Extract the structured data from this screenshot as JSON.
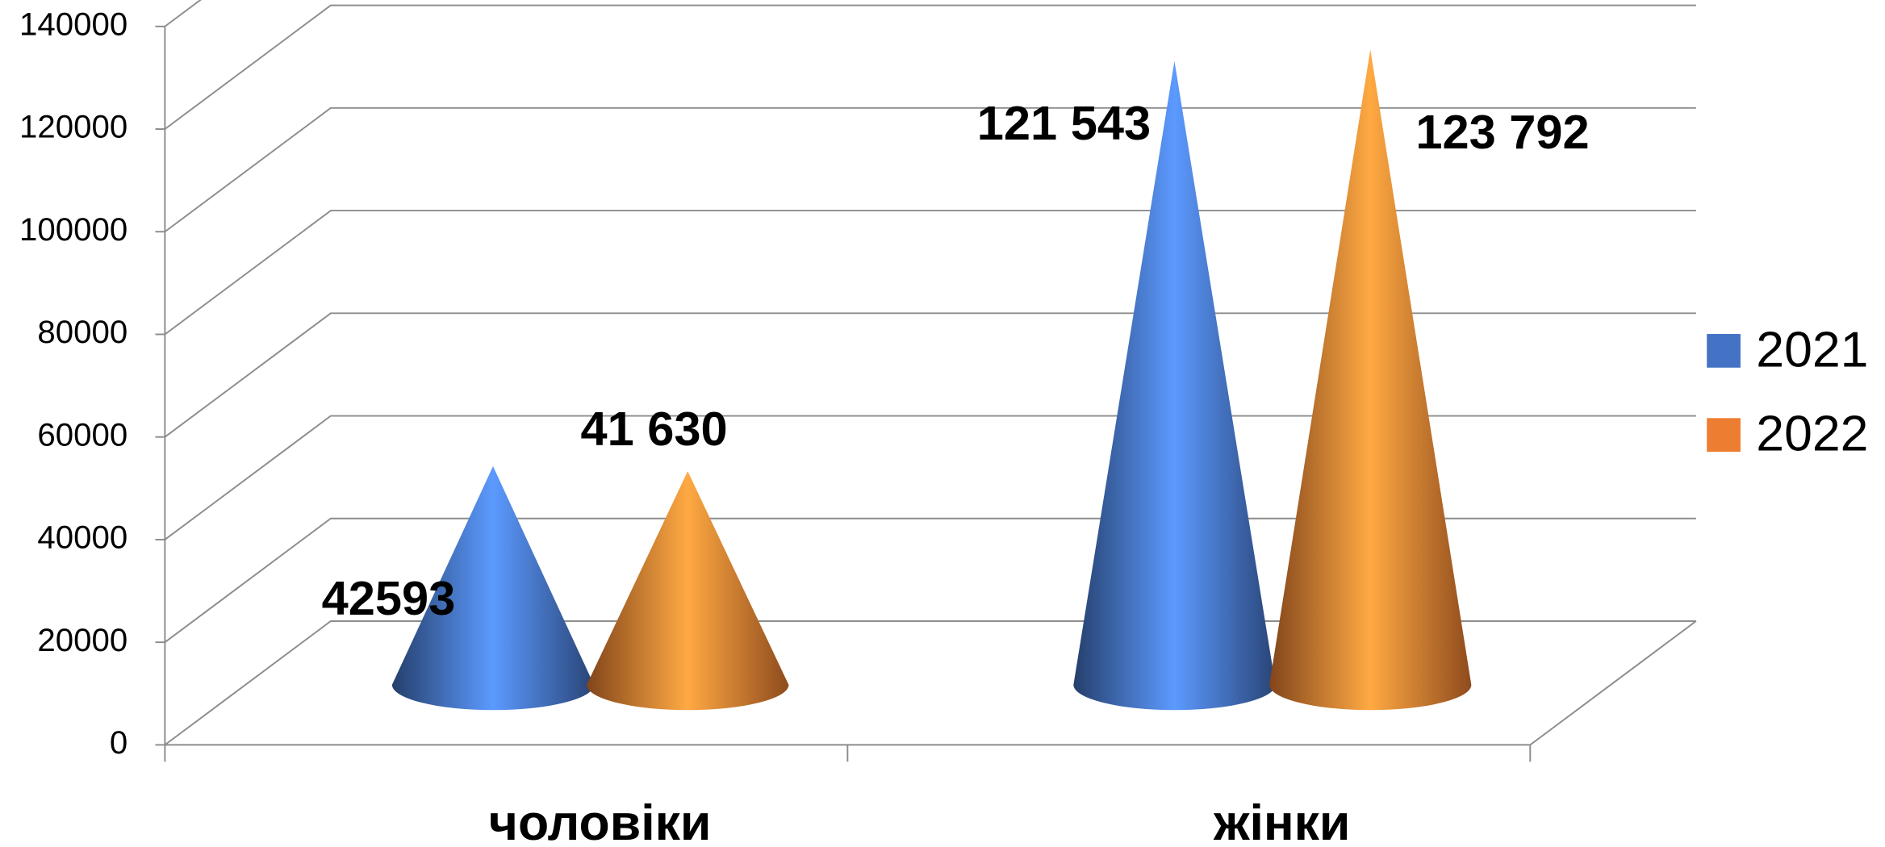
{
  "chart_data": {
    "type": "cone3d",
    "categories": [
      "чоловіки",
      "жінки"
    ],
    "series": [
      {
        "name": "2021",
        "color": "#4472c4",
        "values": [
          42593,
          121543
        ],
        "value_labels": [
          "42593",
          "121 543"
        ]
      },
      {
        "name": "2022",
        "color": "#ed7d31",
        "values": [
          41630,
          123792
        ],
        "value_labels": [
          "41 630",
          "123 792"
        ]
      }
    ],
    "ylim": [
      0,
      140000
    ],
    "yticks": [
      0,
      20000,
      40000,
      60000,
      80000,
      100000,
      120000,
      140000
    ],
    "grid": true,
    "legend": "right"
  }
}
